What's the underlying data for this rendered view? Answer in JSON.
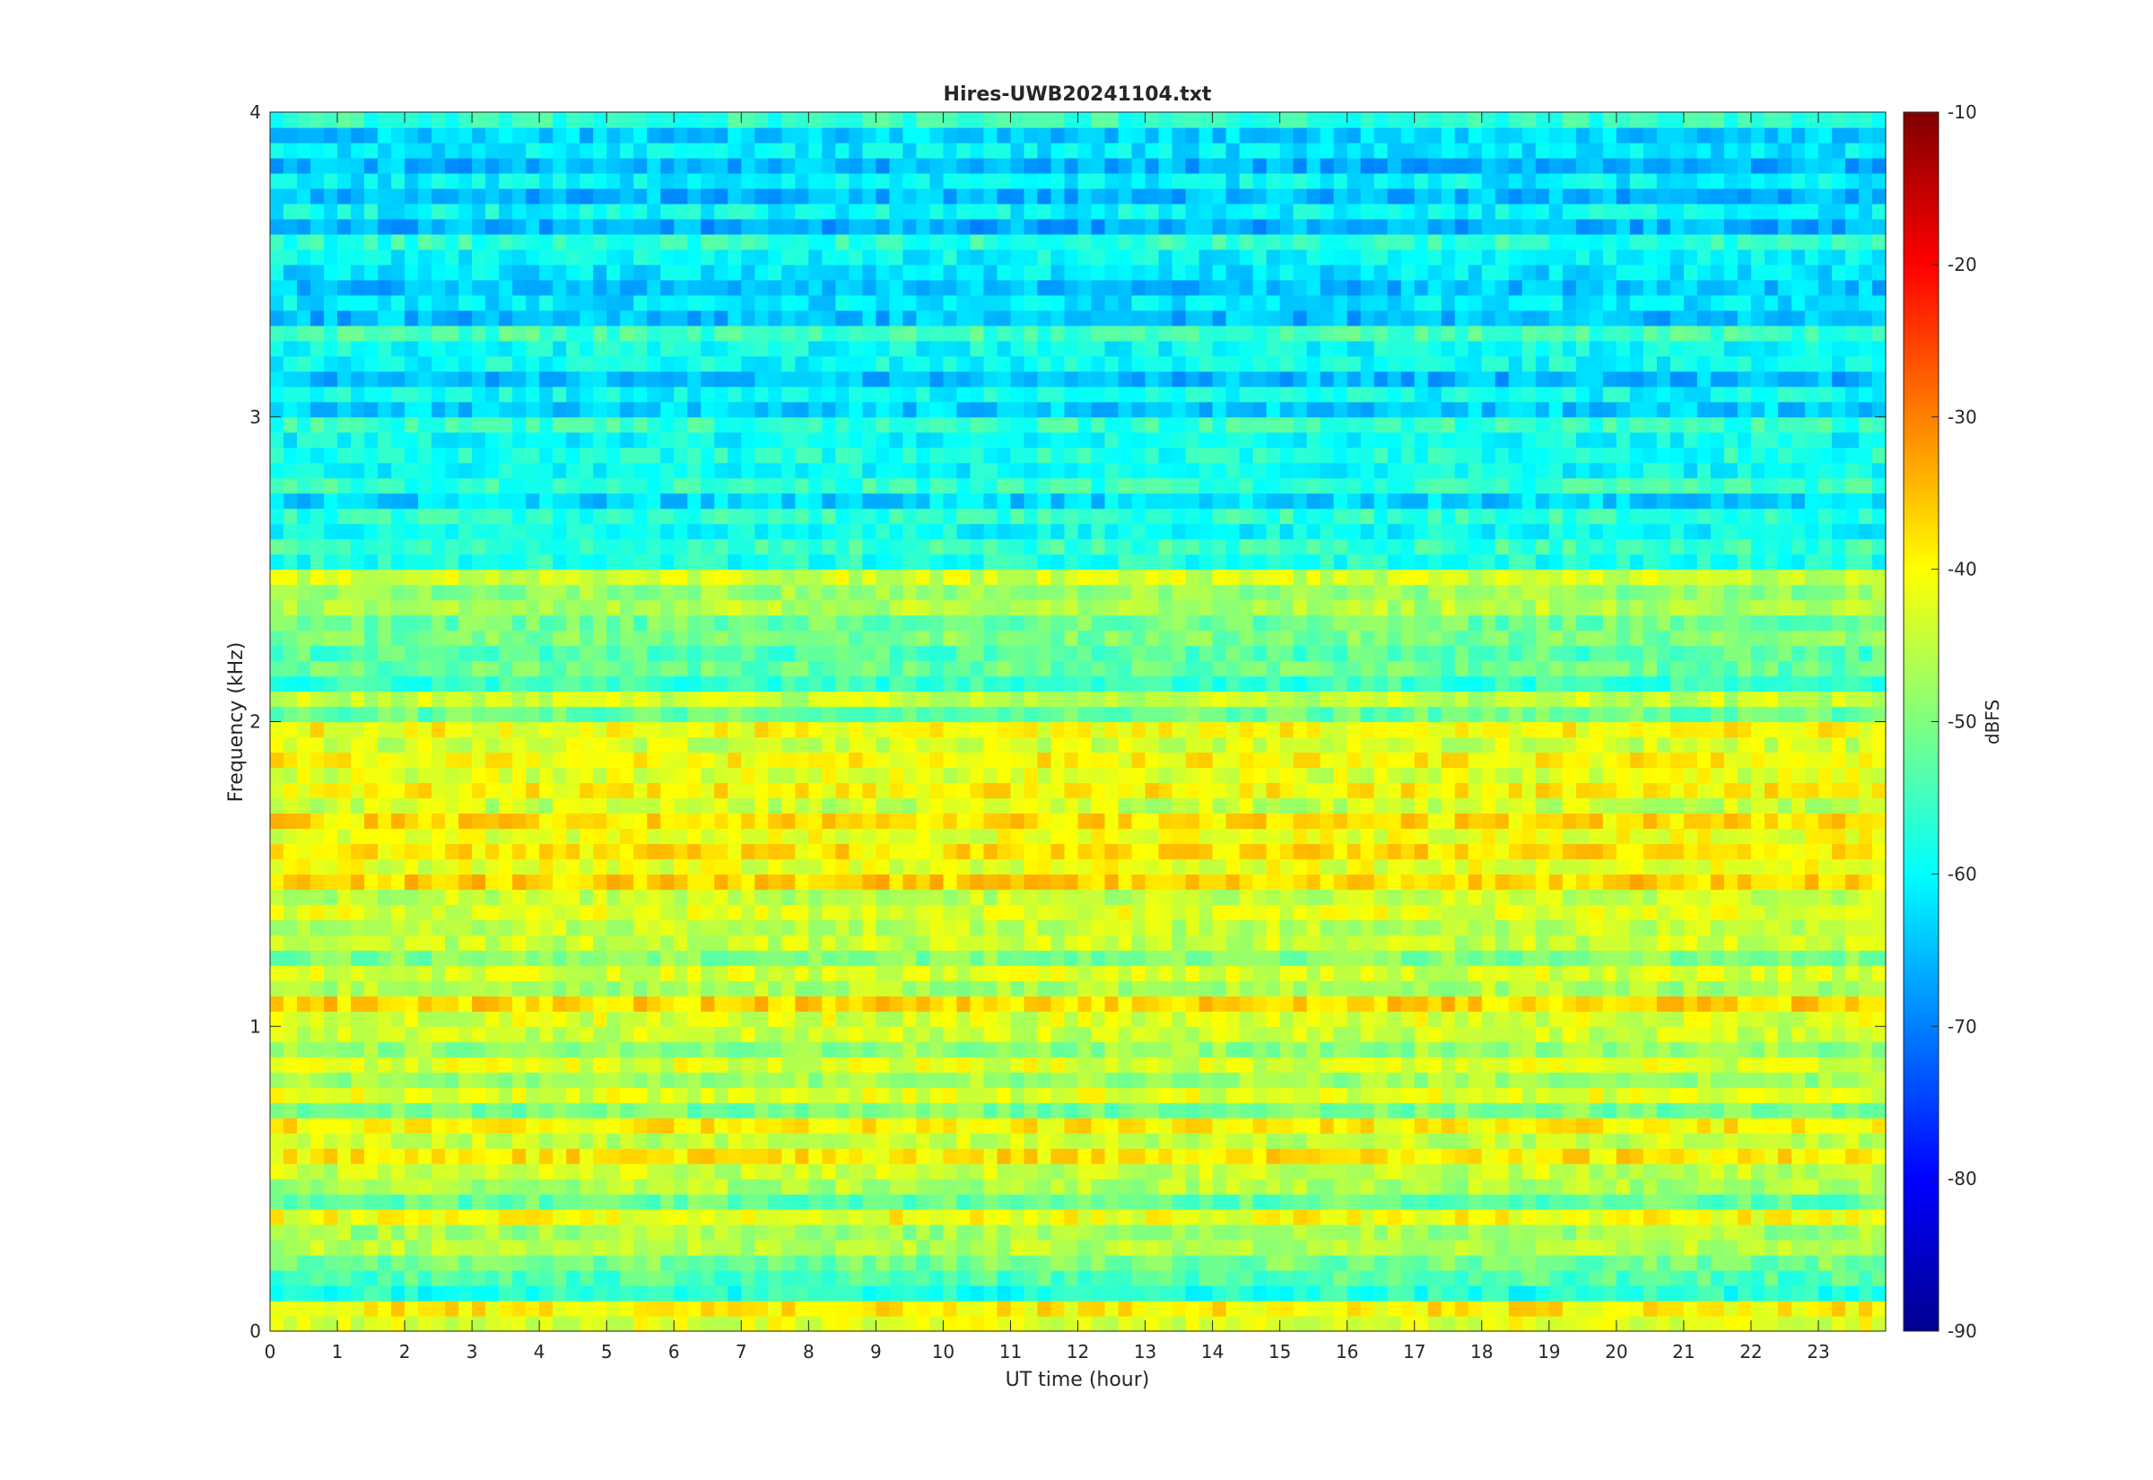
{
  "chart_data": {
    "type": "heatmap",
    "title": "Hires-UWB20241104.txt",
    "xlabel": "UT time (hour)",
    "ylabel": "Frequency (kHz)",
    "xlim": [
      0,
      24
    ],
    "ylim": [
      0,
      4
    ],
    "x_ticks": [
      "0",
      "1",
      "2",
      "3",
      "4",
      "5",
      "6",
      "7",
      "8",
      "9",
      "10",
      "11",
      "12",
      "13",
      "14",
      "15",
      "16",
      "17",
      "18",
      "19",
      "20",
      "21",
      "22",
      "23"
    ],
    "y_ticks": [
      "0",
      "1",
      "2",
      "3",
      "4"
    ],
    "colorbar": {
      "label": "dBFS",
      "range": [
        -90,
        -10
      ],
      "ticks": [
        "-10",
        "-20",
        "-30",
        "-40",
        "-50",
        "-60",
        "-70",
        "-80",
        "-90"
      ],
      "colormap": "jet"
    },
    "band_profile_khz": [
      {
        "f": 0.05,
        "level": -40
      },
      {
        "f": 0.15,
        "level": -55
      },
      {
        "f": 0.25,
        "level": -47
      },
      {
        "f": 0.35,
        "level": -44
      },
      {
        "f": 0.45,
        "level": -50
      },
      {
        "f": 0.55,
        "level": -40
      },
      {
        "f": 0.65,
        "level": -40
      },
      {
        "f": 0.75,
        "level": -46
      },
      {
        "f": 0.85,
        "level": -45
      },
      {
        "f": 0.95,
        "level": -46
      },
      {
        "f": 1.05,
        "level": -38
      },
      {
        "f": 1.15,
        "level": -44
      },
      {
        "f": 1.25,
        "level": -46
      },
      {
        "f": 1.35,
        "level": -44
      },
      {
        "f": 1.45,
        "level": -40
      },
      {
        "f": 1.55,
        "level": -38
      },
      {
        "f": 1.65,
        "level": -38
      },
      {
        "f": 1.75,
        "level": -42
      },
      {
        "f": 1.85,
        "level": -40
      },
      {
        "f": 1.95,
        "level": -41
      },
      {
        "f": 2.05,
        "level": -48
      },
      {
        "f": 2.15,
        "level": -52
      },
      {
        "f": 2.25,
        "level": -52
      },
      {
        "f": 2.35,
        "level": -47
      },
      {
        "f": 2.45,
        "level": -47
      },
      {
        "f": 2.55,
        "level": -56
      },
      {
        "f": 2.65,
        "level": -57
      },
      {
        "f": 2.75,
        "level": -60
      },
      {
        "f": 2.85,
        "level": -58
      },
      {
        "f": 2.95,
        "level": -58
      },
      {
        "f": 3.05,
        "level": -60
      },
      {
        "f": 3.15,
        "level": -62
      },
      {
        "f": 3.25,
        "level": -58
      },
      {
        "f": 3.35,
        "level": -63
      },
      {
        "f": 3.45,
        "level": -62
      },
      {
        "f": 3.55,
        "level": -58
      },
      {
        "f": 3.65,
        "level": -63
      },
      {
        "f": 3.75,
        "level": -62
      },
      {
        "f": 3.85,
        "level": -62
      },
      {
        "f": 3.95,
        "level": -60
      }
    ]
  }
}
